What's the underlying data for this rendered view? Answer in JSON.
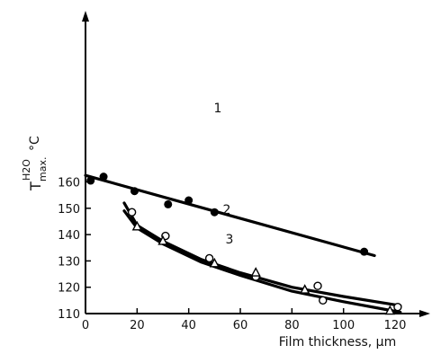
{
  "chart_data": {
    "type": "scatter",
    "title": "",
    "xlabel": "Film thickness, μm",
    "ylabel": {
      "base": "T",
      "superscript": "H2O",
      "subscript": "max.",
      "unit": "°C"
    },
    "xlim": [
      0,
      130
    ],
    "ylim": [
      110,
      167
    ],
    "x_ticks": [
      "0",
      "20",
      "40",
      "60",
      "80",
      "100",
      "120"
    ],
    "y_ticks": [
      "110",
      "120",
      "130",
      "140",
      "150",
      "160"
    ],
    "grid": false,
    "series": [
      {
        "name": "1",
        "marker": "filled-circle",
        "points": [
          [
            2,
            160.5
          ],
          [
            7,
            162
          ],
          [
            19,
            156.5
          ],
          [
            32,
            151.5
          ],
          [
            40,
            153
          ],
          [
            50,
            148.5
          ],
          [
            108,
            133.5
          ]
        ],
        "fit_line": [
          [
            0,
            162.5
          ],
          [
            112,
            132
          ]
        ]
      },
      {
        "name": "2",
        "marker": "open-circle",
        "points": [
          [
            18,
            148.5
          ],
          [
            31,
            139.5
          ],
          [
            48,
            131
          ],
          [
            66,
            124
          ],
          [
            90,
            120.5
          ],
          [
            92,
            115
          ],
          [
            121,
            112.5
          ]
        ],
        "fit_curve": [
          [
            15,
            152
          ],
          [
            20,
            143.5
          ],
          [
            30,
            137.5
          ],
          [
            45,
            130.5
          ],
          [
            60,
            125.5
          ],
          [
            80,
            120
          ],
          [
            100,
            116.5
          ],
          [
            122,
            113
          ]
        ]
      },
      {
        "name": "3",
        "marker": "open-triangle",
        "points": [
          [
            20,
            143
          ],
          [
            30,
            137.5
          ],
          [
            50,
            129
          ],
          [
            66,
            125.5
          ],
          [
            85,
            119
          ],
          [
            118,
            111
          ]
        ],
        "fit_curve": [
          [
            15,
            149
          ],
          [
            20,
            142.5
          ],
          [
            30,
            136.5
          ],
          [
            45,
            129.5
          ],
          [
            60,
            124.5
          ],
          [
            80,
            118.5
          ],
          [
            100,
            114.5
          ],
          [
            122,
            110.5
          ]
        ]
      }
    ],
    "annotations": [
      "1",
      "2",
      "3"
    ]
  }
}
